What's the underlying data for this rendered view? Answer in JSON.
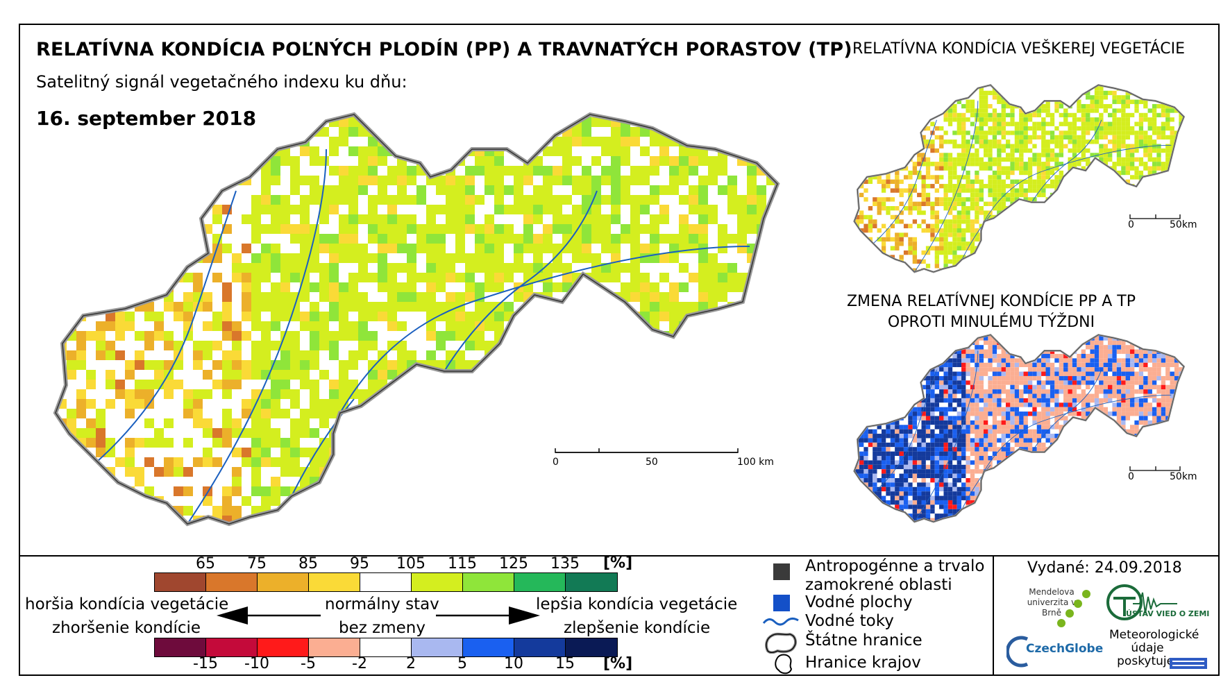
{
  "header": {
    "title": "RELATÍVNA KONDÍCIA POĽNÝCH PLODÍN (PP) A TRAVNATÝCH PORASTOV (TP)",
    "subtitle": "Satelitný signál vegetačného indexu ku dňu:",
    "date": "16. september 2018"
  },
  "inset_all_vegetation": {
    "title": "RELATÍVNA KONDÍCIA VEŠKEREJ VEGETÁCIE",
    "scale": {
      "start": "0",
      "end": "50km"
    }
  },
  "inset_change": {
    "title_line1": "ZMENA RELATÍVNEJ KONDÍCIE PP A TP",
    "title_line2": "OPROTI MINULÉMU TÝŽDNI",
    "scale": {
      "start": "0",
      "end": "50km"
    }
  },
  "main_map": {
    "scale": {
      "start": "0",
      "mid": "50",
      "end": "100 km"
    }
  },
  "legend_condition": {
    "unit": "[%]",
    "ticks": [
      "65",
      "75",
      "85",
      "95",
      "105",
      "115",
      "125",
      "135"
    ],
    "colors": [
      "#a0472f",
      "#d9772b",
      "#ecb02a",
      "#fada37",
      "#ffffff",
      "#d4ee1f",
      "#8fe53a",
      "#25b85a",
      "#127a55"
    ]
  },
  "legend_change": {
    "unit": "[%]",
    "ticks": [
      "-15",
      "-10",
      "-5",
      "-2",
      "2",
      "5",
      "10",
      "15"
    ],
    "colors": [
      "#6e0b3c",
      "#c40a3a",
      "#ff1a1a",
      "#fbae92",
      "#ffffff",
      "#a9b8f0",
      "#1a60f0",
      "#143a9c",
      "#0a1a55"
    ]
  },
  "legend_text": {
    "worse_line1": "horšia kondícia vegetácie",
    "worse_line2": "zhoršenie kondície",
    "normal_line1": "normálny stav",
    "normal_line2": "bez zmeny",
    "better_line1": "lepšia kondícia vegetácie",
    "better_line2": "zlepšenie kondície"
  },
  "symbols": {
    "anthro_line1": "Antropogénne a trvalo",
    "anthro_line2": "zamokrené oblasti",
    "water_bodies": "Vodné plochy",
    "rivers": "Vodné toky",
    "state_border": "Štátne hranice",
    "region_border": "Hranice krajov",
    "colors": {
      "anthro": "#3a3a3a",
      "water": "#1450c8",
      "river": "#1a5fbf"
    }
  },
  "issued": "Vydané: 24.09.2018",
  "logos": {
    "mendel": "Mendelova univerzita v Brně",
    "czechglobe": "CzechGlobe",
    "ustav": "ÚSTAV VIED O ZEMI",
    "meteo": "Meteorologické údaje poskytuje:"
  }
}
